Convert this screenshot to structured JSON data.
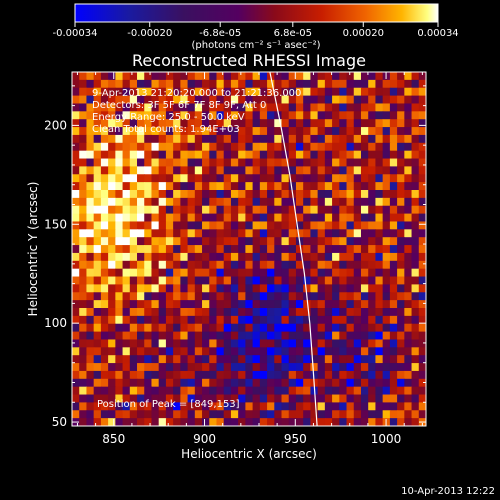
{
  "chart_data": {
    "type": "heatmap",
    "title": "Reconstructed RHESSI Image",
    "xlabel": "Heliocentric X (arcsec)",
    "ylabel": "Heliocentric Y (arcsec)",
    "xlim": [
      827,
      1022
    ],
    "ylim": [
      48,
      227
    ],
    "xticks": [
      850,
      900,
      950,
      1000
    ],
    "yticks": [
      50,
      100,
      150,
      200
    ],
    "grid": false,
    "colorbar": {
      "position": "top",
      "range": [
        -0.00034,
        0.00034
      ],
      "ticks": [
        -0.00034,
        -0.0002,
        -6.8e-05,
        6.8e-05,
        0.0002,
        0.00034
      ],
      "tick_labels": [
        "-0.00034",
        "-0.00020",
        "-6.8e-05",
        "6.8e-05",
        "0.00020",
        "0.00034"
      ],
      "units_label": "(photons cm⁻² s⁻¹ asec⁻²)",
      "colors": [
        "#0000ff",
        "#1a1aa0",
        "#3a1060",
        "#540060",
        "#8a0a1a",
        "#c81e00",
        "#f06400",
        "#ffb400",
        "#ffff80",
        "#ffffff"
      ]
    },
    "annotations": [
      "9-Apr-2013 21:20:20.000 to 21:21:36.000",
      "Detectors: 3F 5F 6F 7F 8F 9F, Att 0",
      "Energy Range: 25.0 - 50.0 keV",
      "Clean     Total counts: 1.94E+03"
    ],
    "peak_label": "Position of Peak = [849,153]",
    "peak": [
      849,
      153
    ],
    "limb_points": [
      [
        936,
        227
      ],
      [
        942,
        200
      ],
      [
        947,
        175
      ],
      [
        951,
        150
      ],
      [
        955,
        125
      ],
      [
        958,
        100
      ],
      [
        960,
        75
      ],
      [
        962,
        48
      ]
    ],
    "grid_cells": {
      "nx": 49,
      "ny": 45
    }
  },
  "timestamp": "10-Apr-2013 12:22"
}
